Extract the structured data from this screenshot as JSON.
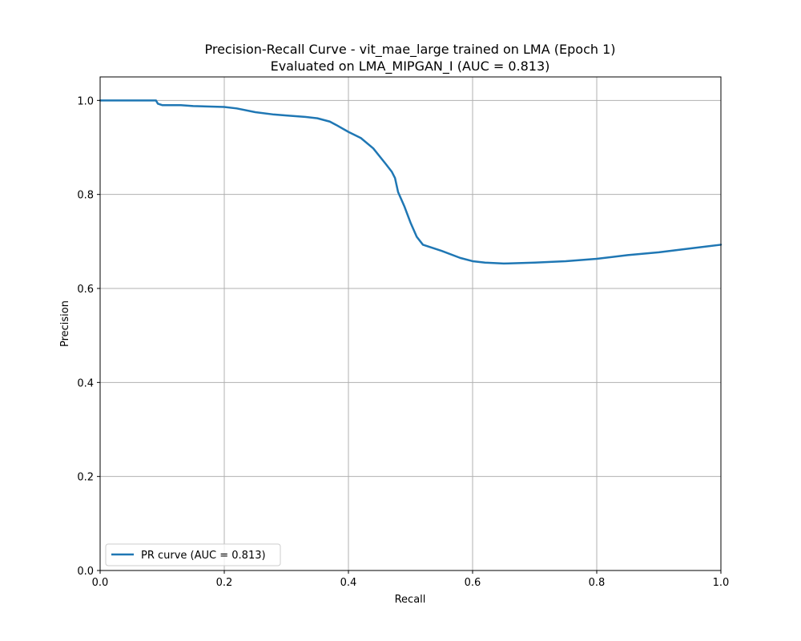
{
  "colors": {
    "background": "#ffffff",
    "series": "#1f77b4",
    "grid": "#b0b0b0",
    "axes": "#000000"
  },
  "chart_data": {
    "type": "line",
    "title": "Precision-Recall Curve - vit_mae_large trained on LMA (Epoch 1)",
    "subtitle": "Evaluated on LMA_MIPGAN_I (AUC = 0.813)",
    "xlabel": "Recall",
    "ylabel": "Precision",
    "xlim": [
      0.0,
      1.0
    ],
    "ylim": [
      0.0,
      1.05
    ],
    "xticks": [
      0.0,
      0.2,
      0.4,
      0.6,
      0.8,
      1.0
    ],
    "xtick_labels": [
      "0.0",
      "0.2",
      "0.4",
      "0.6",
      "0.8",
      "1.0"
    ],
    "yticks": [
      0.0,
      0.2,
      0.4,
      0.6,
      0.8,
      1.0
    ],
    "ytick_labels": [
      "0.0",
      "0.2",
      "0.4",
      "0.6",
      "0.8",
      "1.0"
    ],
    "grid": true,
    "legend_position": "lower-left",
    "series": [
      {
        "name": "PR curve (AUC = 0.813)",
        "x": [
          0.0,
          0.05,
          0.09,
          0.093,
          0.1,
          0.13,
          0.15,
          0.2,
          0.22,
          0.25,
          0.28,
          0.3,
          0.33,
          0.35,
          0.37,
          0.38,
          0.4,
          0.42,
          0.44,
          0.46,
          0.47,
          0.475,
          0.48,
          0.49,
          0.5,
          0.51,
          0.52,
          0.55,
          0.58,
          0.6,
          0.62,
          0.65,
          0.7,
          0.75,
          0.8,
          0.85,
          0.9,
          0.95,
          1.0
        ],
        "y": [
          1.0,
          1.0,
          1.0,
          0.993,
          0.99,
          0.99,
          0.988,
          0.986,
          0.983,
          0.975,
          0.97,
          0.968,
          0.965,
          0.962,
          0.955,
          0.948,
          0.933,
          0.92,
          0.898,
          0.865,
          0.848,
          0.835,
          0.805,
          0.775,
          0.74,
          0.71,
          0.693,
          0.68,
          0.665,
          0.658,
          0.655,
          0.653,
          0.655,
          0.658,
          0.663,
          0.671,
          0.677,
          0.685,
          0.693
        ]
      }
    ]
  }
}
